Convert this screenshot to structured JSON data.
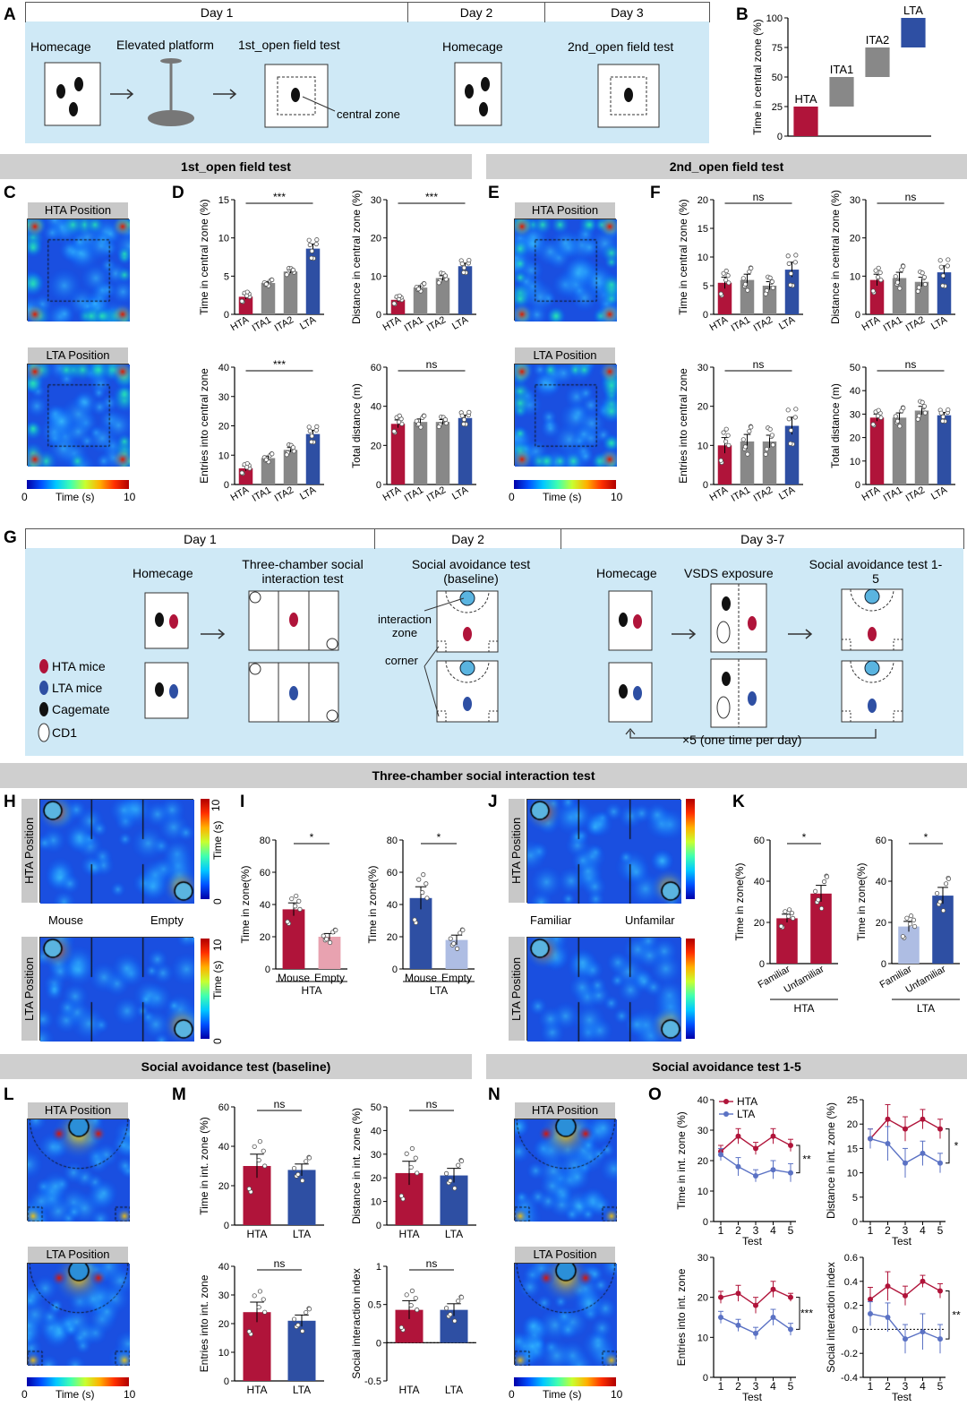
{
  "panels": {
    "A": "A",
    "B": "B",
    "C": "C",
    "D": "D",
    "E": "E",
    "F": "F",
    "G": "G",
    "H": "H",
    "I": "I",
    "J": "J",
    "K": "K",
    "L": "L",
    "M": "M",
    "N": "N",
    "O": "O"
  },
  "panelA": {
    "days": [
      "Day 1",
      "Day 2",
      "Day 3"
    ],
    "steps": [
      "Homecage",
      "Elevated platform",
      "1st_open field test",
      "Homecage",
      "2nd_open field test"
    ],
    "central_zone_label": "central zone"
  },
  "bands": {
    "of1": "1st_open field test",
    "of2": "2nd_open field test",
    "three": "Three-chamber social interaction test",
    "sa_base": "Social avoidance test (baseline)",
    "sa_15": "Social avoidance test 1-5"
  },
  "heatmap": {
    "hta_pos": "HTA Position",
    "lta_pos": "LTA Position",
    "scale_min": "0",
    "scale_max": "10",
    "scale_label": "Time (s)",
    "mouse": "Mouse",
    "empty": "Empty",
    "familiar": "Familiar",
    "unfamiliar": "Unfamilar"
  },
  "panelG": {
    "days": [
      "Day 1",
      "Day 2",
      "Day 3-7"
    ],
    "steps": [
      "Homecage",
      "Three-chamber social interaction test",
      "Social avoidance test (baseline)",
      "Homecage",
      "VSDS exposure",
      "Social avoidance test 1-5"
    ],
    "interaction_zone": "interaction zone",
    "corner": "corner",
    "legend": [
      "HTA mice",
      "LTA mice",
      "Cagemate",
      "CD1"
    ],
    "repeat": "×5 (one time per day)"
  },
  "colors": {
    "hta": "#b0143a",
    "lta": "#2e4fa3",
    "ita": "#888888",
    "hta_light": "#e8a2b0",
    "lta_light": "#aebde3",
    "bg_blue": "#cfe9f6"
  },
  "chart_data": [
    {
      "id": "B",
      "type": "bar",
      "title": "",
      "ylabel": "Time in central zone (%)",
      "categories": [
        "HTA",
        "ITA1",
        "ITA2",
        "LTA"
      ],
      "ranges": [
        [
          0,
          25
        ],
        [
          25,
          50
        ],
        [
          50,
          75
        ],
        [
          75,
          100
        ]
      ],
      "ylim": [
        0,
        100
      ],
      "yticks": [
        0,
        25,
        50,
        75,
        100
      ]
    },
    {
      "id": "D1",
      "type": "bar",
      "ylabel": "Time in central zone (%)",
      "categories": [
        "HTA",
        "ITA1",
        "ITA2",
        "LTA"
      ],
      "values": [
        2.3,
        4.1,
        5.6,
        8.6
      ],
      "errors": [
        0.3,
        0.2,
        0.2,
        0.6
      ],
      "ylim": [
        0,
        15
      ],
      "yticks": [
        0,
        5,
        10,
        15
      ],
      "sig": "***"
    },
    {
      "id": "D2",
      "type": "bar",
      "ylabel": "Distance in central zone (%)",
      "categories": [
        "HTA",
        "ITA1",
        "ITA2",
        "LTA"
      ],
      "values": [
        3.8,
        7.0,
        9.5,
        12.6
      ],
      "errors": [
        0.5,
        0.5,
        0.6,
        0.8
      ],
      "ylim": [
        0,
        30
      ],
      "yticks": [
        0,
        10,
        20,
        30
      ],
      "sig": "***"
    },
    {
      "id": "D3",
      "type": "bar",
      "ylabel": "Entries into central zone",
      "categories": [
        "HTA",
        "ITA1",
        "ITA2",
        "LTA"
      ],
      "values": [
        5.5,
        9.0,
        11.8,
        17.2
      ],
      "errors": [
        0.8,
        0.7,
        0.8,
        1.3
      ],
      "ylim": [
        0,
        40
      ],
      "yticks": [
        0,
        10,
        20,
        30,
        40
      ],
      "sig": "***"
    },
    {
      "id": "D4",
      "type": "bar",
      "ylabel": "Total distance (m)",
      "categories": [
        "HTA",
        "ITA1",
        "ITA2",
        "LTA"
      ],
      "values": [
        31,
        32,
        32,
        34
      ],
      "errors": [
        2,
        1.5,
        1.2,
        1.5
      ],
      "ylim": [
        0,
        60
      ],
      "yticks": [
        0,
        20,
        40,
        60
      ],
      "sig": "ns"
    },
    {
      "id": "F1",
      "type": "bar",
      "ylabel": "Time in central zone (%)",
      "categories": [
        "HTA",
        "ITA1",
        "ITA2",
        "LTA"
      ],
      "values": [
        5.5,
        6.0,
        5.0,
        7.8
      ],
      "errors": [
        1.0,
        1.0,
        0.7,
        1.3
      ],
      "ylim": [
        0,
        20
      ],
      "yticks": [
        0,
        5,
        10,
        15,
        20
      ],
      "sig": "ns"
    },
    {
      "id": "F2",
      "type": "bar",
      "ylabel": "Distance in central zone (%)",
      "categories": [
        "HTA",
        "ITA1",
        "ITA2",
        "LTA"
      ],
      "values": [
        9,
        9.5,
        8.5,
        11
      ],
      "errors": [
        1.5,
        1.5,
        1.2,
        1.7
      ],
      "ylim": [
        0,
        30
      ],
      "yticks": [
        0,
        10,
        20,
        30
      ],
      "sig": "ns"
    },
    {
      "id": "F3",
      "type": "bar",
      "ylabel": "Entries into central zone",
      "categories": [
        "HTA",
        "ITA1",
        "ITA2",
        "LTA"
      ],
      "values": [
        10,
        11,
        11,
        15
      ],
      "errors": [
        2,
        1.8,
        1.6,
        2.2
      ],
      "ylim": [
        0,
        30
      ],
      "yticks": [
        0,
        10,
        20,
        30
      ],
      "sig": "ns"
    },
    {
      "id": "F4",
      "type": "bar",
      "ylabel": "Total distance (m)",
      "categories": [
        "HTA",
        "ITA1",
        "ITA2",
        "LTA"
      ],
      "values": [
        28.5,
        28.5,
        31.5,
        29.5
      ],
      "errors": [
        1.5,
        2,
        1.8,
        1.2
      ],
      "ylim": [
        0,
        50
      ],
      "yticks": [
        0,
        10,
        20,
        30,
        40,
        50
      ],
      "sig": "ns"
    },
    {
      "id": "I1",
      "type": "bar",
      "ylabel": "Time in zone(%)",
      "categories": [
        "Mouse",
        "Empty"
      ],
      "group": "HTA",
      "values": [
        37,
        20
      ],
      "errors": [
        4,
        2
      ],
      "ylim": [
        0,
        80
      ],
      "yticks": [
        0,
        20,
        40,
        60,
        80
      ],
      "sig": "*"
    },
    {
      "id": "I2",
      "type": "bar",
      "ylabel": "Time in zone(%)",
      "categories": [
        "Mouse",
        "Empty"
      ],
      "group": "LTA",
      "values": [
        44,
        18
      ],
      "errors": [
        7,
        3
      ],
      "ylim": [
        0,
        80
      ],
      "yticks": [
        0,
        20,
        40,
        60,
        80
      ],
      "sig": "*"
    },
    {
      "id": "K1",
      "type": "bar",
      "ylabel": "Time in zone(%)",
      "categories": [
        "Familiar",
        "Unfamiliar"
      ],
      "group": "HTA",
      "values": [
        22,
        34
      ],
      "errors": [
        2,
        4
      ],
      "ylim": [
        0,
        60
      ],
      "yticks": [
        0,
        20,
        40,
        60
      ],
      "sig": "*"
    },
    {
      "id": "K2",
      "type": "bar",
      "ylabel": "Time in zone(%)",
      "categories": [
        "Familiar",
        "Unfamiliar"
      ],
      "group": "LTA",
      "values": [
        18,
        33
      ],
      "errors": [
        2.5,
        4
      ],
      "ylim": [
        0,
        60
      ],
      "yticks": [
        0,
        20,
        40,
        60
      ],
      "sig": "*"
    },
    {
      "id": "M1",
      "type": "bar",
      "ylabel": "Time in int. zone (%)",
      "categories": [
        "HTA",
        "LTA"
      ],
      "values": [
        30,
        28
      ],
      "errors": [
        6,
        3
      ],
      "ylim": [
        0,
        60
      ],
      "yticks": [
        0,
        20,
        40,
        60
      ],
      "sig": "ns"
    },
    {
      "id": "M2",
      "type": "bar",
      "ylabel": "Distance in int. zone (%)",
      "categories": [
        "HTA",
        "LTA"
      ],
      "values": [
        22,
        21
      ],
      "errors": [
        5,
        3
      ],
      "ylim": [
        0,
        50
      ],
      "yticks": [
        0,
        10,
        20,
        30,
        40,
        50
      ],
      "sig": "ns"
    },
    {
      "id": "M3",
      "type": "bar",
      "ylabel": "Entries into int. zone",
      "categories": [
        "HTA",
        "LTA"
      ],
      "values": [
        24,
        21
      ],
      "errors": [
        3.5,
        2
      ],
      "ylim": [
        0,
        40
      ],
      "yticks": [
        0,
        10,
        20,
        30,
        40
      ],
      "sig": "ns"
    },
    {
      "id": "M4",
      "type": "bar",
      "ylabel": "Social interaction index",
      "categories": [
        "HTA",
        "LTA"
      ],
      "values": [
        0.43,
        0.43
      ],
      "errors": [
        0.12,
        0.08
      ],
      "ylim": [
        -0.5,
        1.0
      ],
      "yticks": [
        -0.5,
        0.0,
        0.5,
        1.0
      ],
      "sig": "ns"
    },
    {
      "id": "O1",
      "type": "line",
      "ylabel": "Time in int. zone (%)",
      "xlabel": "Test",
      "x": [
        1,
        2,
        3,
        4,
        5
      ],
      "series": [
        {
          "name": "HTA",
          "values": [
            23,
            28,
            24,
            28,
            25
          ],
          "errors": [
            2,
            2.5,
            2,
            2.5,
            2
          ]
        },
        {
          "name": "LTA",
          "values": [
            22,
            18,
            15,
            17,
            16
          ],
          "errors": [
            2,
            3,
            2,
            3,
            3
          ]
        }
      ],
      "ylim": [
        0,
        40
      ],
      "yticks": [
        0,
        10,
        20,
        30,
        40
      ],
      "sig": "**"
    },
    {
      "id": "O2",
      "type": "line",
      "ylabel": "Distance in int. zone (%)",
      "xlabel": "Test",
      "x": [
        1,
        2,
        3,
        4,
        5
      ],
      "series": [
        {
          "name": "HTA",
          "values": [
            17,
            21,
            19,
            21,
            19
          ],
          "errors": [
            2,
            3,
            2.5,
            2,
            2
          ]
        },
        {
          "name": "LTA",
          "values": [
            17,
            16,
            12,
            14,
            12
          ],
          "errors": [
            2,
            3.5,
            3,
            2.5,
            2
          ]
        }
      ],
      "ylim": [
        0,
        25
      ],
      "yticks": [
        0,
        5,
        10,
        15,
        20,
        25
      ],
      "sig": "*"
    },
    {
      "id": "O3",
      "type": "line",
      "ylabel": "Entries into int. zone",
      "xlabel": "Test",
      "x": [
        1,
        2,
        3,
        4,
        5
      ],
      "series": [
        {
          "name": "HTA",
          "values": [
            20,
            21,
            18,
            22,
            20
          ],
          "errors": [
            1.5,
            2,
            2,
            2,
            1
          ]
        },
        {
          "name": "LTA",
          "values": [
            15,
            13,
            11,
            15,
            12
          ],
          "errors": [
            1.5,
            1.5,
            1.5,
            2,
            1.5
          ]
        }
      ],
      "ylim": [
        0,
        30
      ],
      "yticks": [
        0,
        10,
        20,
        30
      ],
      "sig": "***"
    },
    {
      "id": "O4",
      "type": "line",
      "ylabel": "Social interaction index",
      "xlabel": "Test",
      "x": [
        1,
        2,
        3,
        4,
        5
      ],
      "series": [
        {
          "name": "HTA",
          "values": [
            0.25,
            0.36,
            0.28,
            0.4,
            0.32
          ],
          "errors": [
            0.1,
            0.12,
            0.08,
            0.05,
            0.06
          ]
        },
        {
          "name": "LTA",
          "values": [
            0.13,
            0.1,
            -0.08,
            -0.02,
            -0.08
          ],
          "errors": [
            0.1,
            0.12,
            0.12,
            0.15,
            0.12
          ]
        }
      ],
      "ylim": [
        -0.4,
        0.6
      ],
      "yticks": [
        -0.4,
        -0.2,
        0.0,
        0.2,
        0.4,
        0.6
      ],
      "sig": "**"
    }
  ]
}
